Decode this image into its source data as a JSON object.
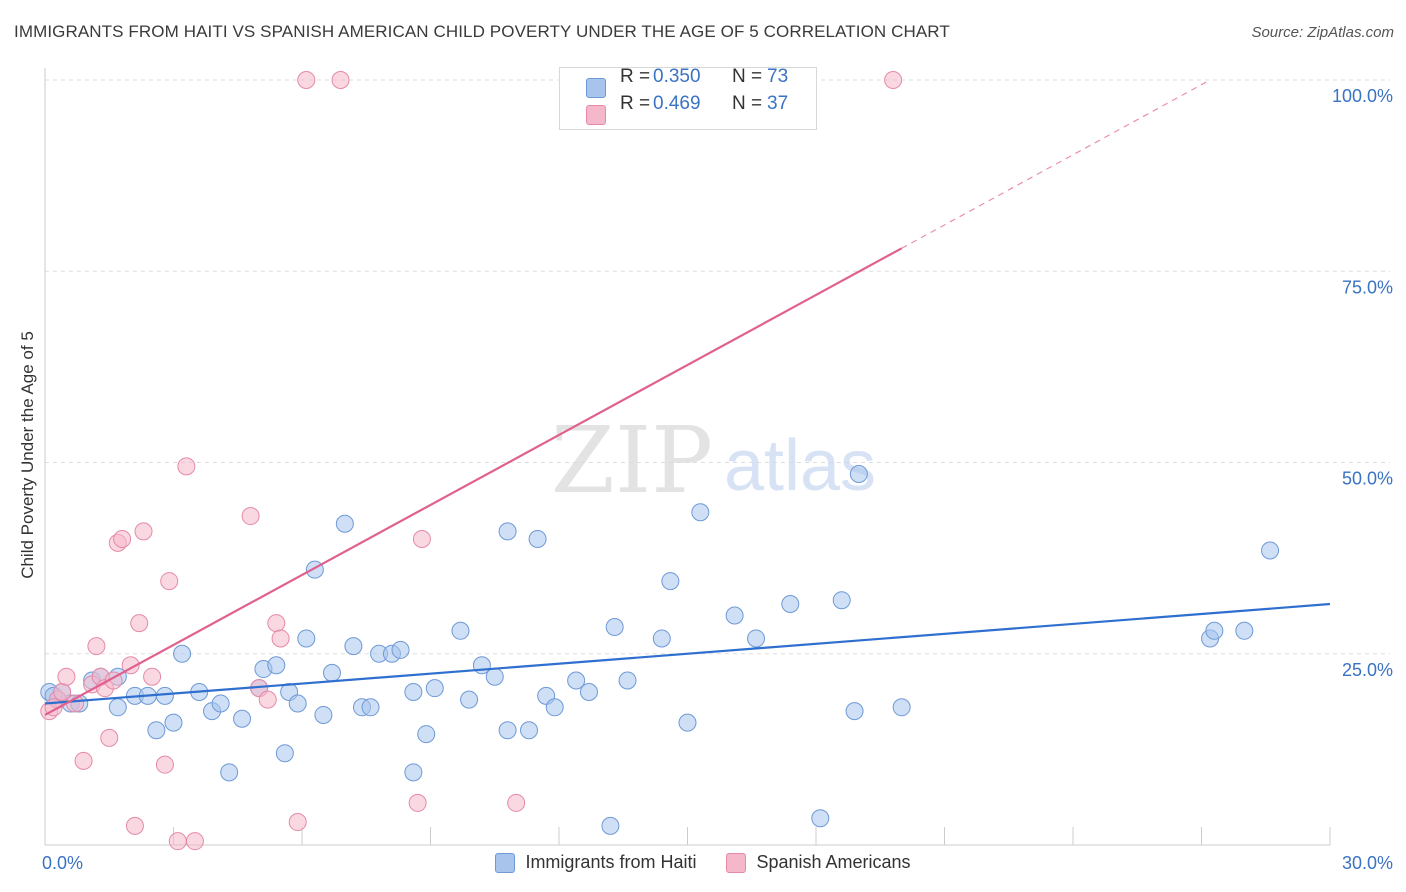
{
  "title": "IMMIGRANTS FROM HAITI VS SPANISH AMERICAN CHILD POVERTY UNDER THE AGE OF 5 CORRELATION CHART",
  "source": "Source: ZipAtlas.com",
  "watermark": {
    "zip": "ZIP",
    "atlas": "atlas"
  },
  "colors": {
    "blue_fill": "#a8c4ec",
    "blue_stroke": "#6e9ad6",
    "blue_line": "#2f6fcf",
    "pink_fill": "#f5b8cb",
    "pink_stroke": "#e58aa8",
    "pink_line": "#e0608f",
    "axis_label": "#3a72c4",
    "grid": "#dddddd"
  },
  "stats": [
    {
      "series": "Immigrants from Haiti",
      "r_label": "R =",
      "r_value": "0.350",
      "n_label": "N =",
      "n_value": "73",
      "color": "blue"
    },
    {
      "series": "Spanish Americans",
      "r_label": "R =",
      "r_value": "0.469",
      "n_label": "N =",
      "n_value": "37",
      "color": "pink"
    }
  ],
  "legend": [
    {
      "label": "Immigrants from Haiti",
      "color": "blue"
    },
    {
      "label": "Spanish Americans",
      "color": "pink"
    }
  ],
  "chart_data": {
    "type": "scatter",
    "title": "IMMIGRANTS FROM HAITI VS SPANISH AMERICAN CHILD POVERTY UNDER THE AGE OF 5 CORRELATION CHART",
    "xlabel": "",
    "ylabel": "Child Poverty Under the Age of 5",
    "xlim": [
      0,
      30
    ],
    "ylim": [
      0,
      100
    ],
    "x_tick_labels": [
      {
        "value": 0,
        "label": "0.0%"
      },
      {
        "value": 30,
        "label": "30.0%"
      }
    ],
    "y_tick_labels": [
      {
        "value": 25,
        "label": "25.0%"
      },
      {
        "value": 50,
        "label": "50.0%"
      },
      {
        "value": 75,
        "label": "75.0%"
      },
      {
        "value": 100,
        "label": "100.0%"
      }
    ],
    "x_minor_ticks": [
      3,
      6,
      9,
      12,
      15,
      18,
      21,
      24,
      27,
      30
    ],
    "grid": true,
    "series": [
      {
        "name": "Immigrants from Haiti",
        "color": "blue",
        "trend": {
          "x0": 0,
          "y0": 18.5,
          "x1": 30,
          "y1": 31.5,
          "dashed_from": null
        },
        "points": [
          [
            0.1,
            20
          ],
          [
            0.3,
            19
          ],
          [
            0.4,
            20
          ],
          [
            0.6,
            18.5
          ],
          [
            0.8,
            18.5
          ],
          [
            1.1,
            21.5
          ],
          [
            1.3,
            22
          ],
          [
            1.7,
            22
          ],
          [
            1.7,
            18
          ],
          [
            2.1,
            19.5
          ],
          [
            2.4,
            19.5
          ],
          [
            2.6,
            15
          ],
          [
            2.8,
            19.5
          ],
          [
            3.0,
            16
          ],
          [
            3.2,
            25
          ],
          [
            3.6,
            20
          ],
          [
            3.9,
            17.5
          ],
          [
            4.1,
            18.5
          ],
          [
            4.3,
            9.5
          ],
          [
            4.6,
            16.5
          ],
          [
            5.0,
            20.5
          ],
          [
            5.1,
            23
          ],
          [
            5.4,
            23.5
          ],
          [
            5.6,
            12
          ],
          [
            5.7,
            20
          ],
          [
            5.9,
            18.5
          ],
          [
            6.1,
            27
          ],
          [
            6.3,
            36
          ],
          [
            6.5,
            17
          ],
          [
            6.7,
            22.5
          ],
          [
            7.0,
            42
          ],
          [
            7.2,
            26
          ],
          [
            7.4,
            18
          ],
          [
            7.6,
            18
          ],
          [
            7.8,
            25
          ],
          [
            8.1,
            25
          ],
          [
            8.3,
            25.5
          ],
          [
            8.6,
            9.5
          ],
          [
            8.6,
            20
          ],
          [
            8.9,
            14.5
          ],
          [
            9.1,
            20.5
          ],
          [
            9.7,
            28
          ],
          [
            9.9,
            19
          ],
          [
            10.2,
            23.5
          ],
          [
            10.5,
            22
          ],
          [
            10.8,
            41
          ],
          [
            10.8,
            15
          ],
          [
            11.3,
            15
          ],
          [
            11.5,
            40
          ],
          [
            11.7,
            19.5
          ],
          [
            11.9,
            18
          ],
          [
            12.4,
            21.5
          ],
          [
            12.7,
            20
          ],
          [
            13.2,
            2.5
          ],
          [
            13.3,
            28.5
          ],
          [
            13.6,
            21.5
          ],
          [
            14.4,
            27
          ],
          [
            14.6,
            34.5
          ],
          [
            15.0,
            16
          ],
          [
            15.3,
            43.5
          ],
          [
            16.1,
            30
          ],
          [
            16.6,
            27
          ],
          [
            17.4,
            31.5
          ],
          [
            18.1,
            3.5
          ],
          [
            18.6,
            32
          ],
          [
            18.9,
            17.5
          ],
          [
            19.0,
            48.5
          ],
          [
            20.0,
            18
          ],
          [
            27.2,
            27
          ],
          [
            27.3,
            28
          ],
          [
            28.0,
            28
          ],
          [
            28.6,
            38.5
          ],
          [
            0.2,
            19.5
          ]
        ]
      },
      {
        "name": "Spanish Americans",
        "color": "pink",
        "trend": {
          "x0": 0,
          "y0": 17,
          "x1": 20,
          "y1": 78,
          "dashed_to_x": 27.2,
          "dashed_to_y": 100
        },
        "points": [
          [
            0.1,
            17.5
          ],
          [
            0.3,
            19
          ],
          [
            0.4,
            20
          ],
          [
            0.5,
            22
          ],
          [
            0.7,
            18.5
          ],
          [
            0.9,
            11
          ],
          [
            1.1,
            21
          ],
          [
            1.2,
            26
          ],
          [
            1.3,
            22
          ],
          [
            1.4,
            20.5
          ],
          [
            1.5,
            14
          ],
          [
            1.6,
            21.5
          ],
          [
            1.7,
            39.5
          ],
          [
            1.8,
            40
          ],
          [
            2.0,
            23.5
          ],
          [
            2.1,
            2.5
          ],
          [
            2.2,
            29
          ],
          [
            2.3,
            41
          ],
          [
            2.5,
            22
          ],
          [
            2.8,
            10.5
          ],
          [
            2.9,
            34.5
          ],
          [
            3.1,
            0.5
          ],
          [
            3.3,
            49.5
          ],
          [
            3.5,
            0.5
          ],
          [
            4.8,
            43
          ],
          [
            5.0,
            20.5
          ],
          [
            5.2,
            19
          ],
          [
            5.4,
            29
          ],
          [
            5.5,
            27
          ],
          [
            5.9,
            3
          ],
          [
            6.1,
            100
          ],
          [
            6.9,
            100
          ],
          [
            8.7,
            5.5
          ],
          [
            8.8,
            40
          ],
          [
            11.0,
            5.5
          ],
          [
            19.8,
            100
          ],
          [
            0.2,
            18
          ]
        ]
      }
    ]
  }
}
